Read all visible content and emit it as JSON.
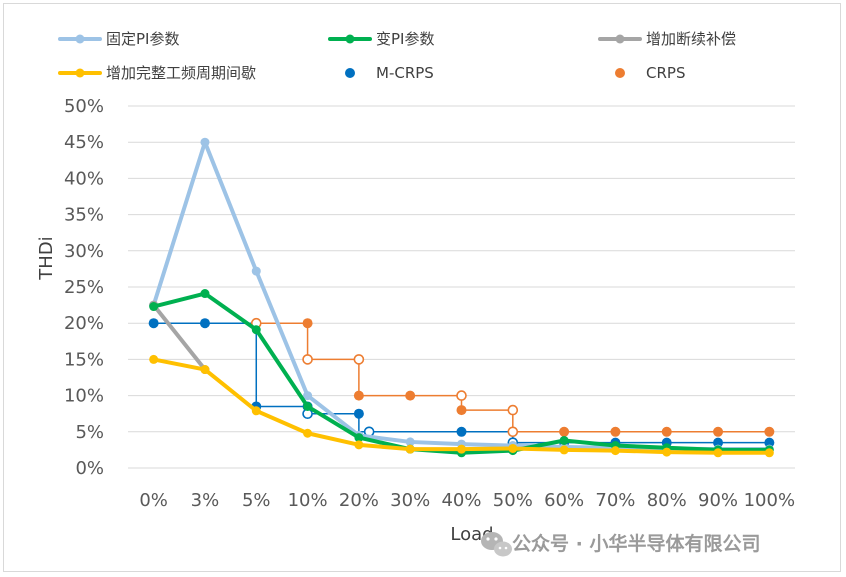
{
  "chart_data": {
    "type": "line",
    "title": "",
    "xlabel": "Load",
    "ylabel": "THDi",
    "categories": [
      "0%",
      "3%",
      "5%",
      "10%",
      "20%",
      "30%",
      "40%",
      "50%",
      "60%",
      "70%",
      "80%",
      "90%",
      "100%"
    ],
    "y_ticks": [
      "0%",
      "5%",
      "10%",
      "15%",
      "20%",
      "25%",
      "30%",
      "35%",
      "40%",
      "45%",
      "50%"
    ],
    "ylim": [
      0,
      50
    ],
    "y_unit": "%",
    "grid": "horizontal",
    "legend_position": "top",
    "series": [
      {
        "name": "固定PI参数",
        "kind": "line",
        "color": "#9dc3e6",
        "values": [
          22.5,
          45.0,
          27.2,
          10.0,
          4.5,
          3.6,
          3.3,
          3.1,
          2.9,
          2.8,
          2.7,
          2.6,
          2.6
        ]
      },
      {
        "name": "变PI参数",
        "kind": "line",
        "color": "#00b050",
        "values": [
          22.3,
          24.1,
          19.1,
          8.5,
          4.2,
          2.6,
          2.1,
          2.4,
          3.8,
          3.1,
          2.8,
          2.5,
          2.5
        ]
      },
      {
        "name": "增加断续补偿",
        "kind": "line",
        "color": "#a5a5a5",
        "values": [
          22.5,
          13.6,
          null,
          null,
          null,
          null,
          null,
          null,
          null,
          null,
          null,
          null,
          null
        ]
      },
      {
        "name": "增加完整工频周期间歇",
        "kind": "line",
        "color": "#ffc000",
        "values": [
          15.0,
          13.6,
          7.9,
          4.8,
          3.2,
          2.6,
          2.6,
          2.7,
          2.5,
          2.4,
          2.2,
          2.1,
          2.1
        ]
      },
      {
        "name": "M-CRPS",
        "kind": "step",
        "color": "#0070c0",
        "filled": [
          [
            0,
            20
          ],
          [
            1,
            20
          ],
          [
            2,
            8.5
          ],
          [
            3,
            8.5
          ],
          [
            4,
            7.5
          ],
          [
            4.2,
            5.0
          ],
          [
            6,
            5.0
          ],
          [
            7,
            5.0
          ],
          [
            8,
            3.5
          ],
          [
            9,
            3.5
          ],
          [
            10,
            3.5
          ],
          [
            11,
            3.5
          ],
          [
            12,
            3.5
          ]
        ],
        "hollow": [
          [
            3,
            7.5
          ],
          [
            4.2,
            5.0
          ],
          [
            7,
            3.5
          ]
        ],
        "path": [
          [
            0,
            20
          ],
          [
            2,
            20
          ],
          [
            2,
            8.5
          ],
          [
            3,
            8.5
          ],
          [
            3,
            7.5
          ],
          [
            4,
            7.5
          ],
          [
            4,
            5.0
          ],
          [
            7,
            5.0
          ],
          [
            7,
            3.5
          ],
          [
            12,
            3.5
          ]
        ]
      },
      {
        "name": "CRPS",
        "kind": "step",
        "color": "#ed7d31",
        "filled": [
          [
            3,
            20
          ],
          [
            4,
            10
          ],
          [
            5,
            10
          ],
          [
            6,
            8
          ],
          [
            8,
            5
          ],
          [
            9,
            5
          ],
          [
            10,
            5
          ],
          [
            11,
            5
          ],
          [
            12,
            5
          ]
        ],
        "hollow": [
          [
            2,
            20
          ],
          [
            3,
            15
          ],
          [
            4,
            15
          ],
          [
            6,
            10
          ],
          [
            7,
            8
          ],
          [
            7,
            5
          ]
        ],
        "path": [
          [
            2,
            20
          ],
          [
            3,
            20
          ],
          [
            3,
            15
          ],
          [
            4,
            15
          ],
          [
            4,
            10
          ],
          [
            6,
            10
          ],
          [
            6,
            8
          ],
          [
            7,
            8
          ],
          [
            7,
            5
          ],
          [
            12,
            5
          ]
        ]
      }
    ]
  },
  "watermark": {
    "text": "公众号 · 小华半导体有限公司",
    "icon": "wechat-icon"
  }
}
